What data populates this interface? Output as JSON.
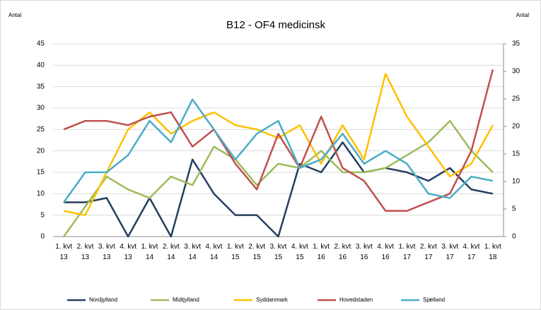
{
  "chart_data": {
    "type": "line",
    "title": "B12 - OF4 medicinsk",
    "y_label": "Antal",
    "y2_label": "Antal",
    "categories": [
      "1. kvt 13",
      "2. kvt 13",
      "3. kvt 13",
      "4. kvt 13",
      "1. kvt 14",
      "2. kvt 14",
      "3. kvt 14",
      "4. kvt 14",
      "1. kvt 15",
      "2. kvt 15",
      "3. kvt 15",
      "4. kvt 15",
      "1. kvt 16",
      "2. kvt 16",
      "3. kvt 16",
      "4. kvt 16",
      "1. kvt 17",
      "2. kvt 17",
      "3. kvt 17",
      "4. kvt 17",
      "1. kvt 18"
    ],
    "series": [
      {
        "name": "Nordjylland",
        "color": "#243f60",
        "values": [
          8,
          8,
          9,
          0,
          9,
          0,
          18,
          10,
          5,
          5,
          0,
          17,
          15,
          22,
          15,
          16,
          15,
          13,
          16,
          11,
          10
        ]
      },
      {
        "name": "Midtjylland",
        "color": "#9bbb59",
        "values": [
          0,
          7,
          14,
          11,
          9,
          14,
          12,
          21,
          18,
          12,
          17,
          16,
          20,
          15,
          15,
          16,
          19,
          22,
          27,
          20,
          15
        ]
      },
      {
        "name": "Syddanmark",
        "color": "#ffc000",
        "values": [
          6,
          5,
          15,
          25,
          29,
          24,
          27,
          29,
          26,
          25,
          23,
          26,
          17,
          26,
          18,
          38,
          28,
          21,
          14,
          17,
          26
        ]
      },
      {
        "name": "Hovedstaden",
        "color": "#c0504d",
        "values": [
          25,
          27,
          27,
          26,
          28,
          29,
          21,
          25,
          17,
          11,
          24,
          16,
          28,
          16,
          13,
          6,
          6,
          8,
          10,
          20,
          39
        ]
      },
      {
        "name": "Sjælland",
        "color": "#4bacc6",
        "values": [
          8,
          15,
          15,
          19,
          27,
          22,
          32,
          25,
          18,
          24,
          27,
          16,
          18,
          24,
          17,
          20,
          17,
          10,
          9,
          14,
          13
        ]
      }
    ],
    "ylim": [
      0,
      45
    ],
    "yticks": [
      0,
      5,
      10,
      15,
      20,
      25,
      30,
      35,
      40,
      45
    ],
    "y2lim": [
      0,
      35
    ],
    "y2ticks": [
      0,
      5,
      10,
      15,
      20,
      25,
      30,
      35
    ],
    "grid": true,
    "legend": "bottom"
  }
}
